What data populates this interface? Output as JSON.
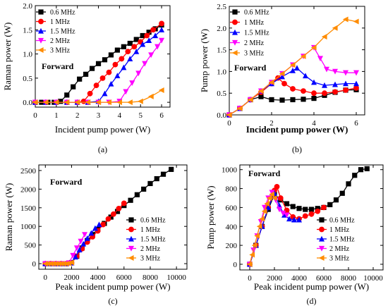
{
  "chart_data": [
    {
      "panel": "a",
      "caption": "(a)",
      "type": "line",
      "xlabel": "Incident pump power (W)",
      "ylabel": "Raman power (W)",
      "xlim": [
        0,
        6.4
      ],
      "ylim": [
        -0.1,
        2.0
      ],
      "xticks": [
        "0",
        "1",
        "2",
        "3",
        "4",
        "5",
        "6"
      ],
      "yticks": [
        "0.0",
        "0.5",
        "1.0",
        "1.5",
        "2.0"
      ],
      "xtick_values": [
        0,
        1,
        2,
        3,
        4,
        5,
        6
      ],
      "ytick_values": [
        0,
        0.5,
        1.0,
        1.5,
        2.0
      ],
      "annotation": "Forward",
      "legend": "top-left",
      "series": [
        {
          "name": "0.6 MHz",
          "marker": "square",
          "color": "#000000",
          "x": [
            0,
            0.3,
            0.6,
            0.9,
            1.2,
            1.5,
            1.8,
            2.1,
            2.4,
            2.7,
            3.0,
            3.3,
            3.6,
            3.9,
            4.2,
            4.5,
            4.8,
            5.1,
            5.4,
            5.7,
            6.0
          ],
          "y": [
            0,
            0,
            0,
            0,
            0.02,
            0.15,
            0.32,
            0.48,
            0.58,
            0.7,
            0.8,
            0.88,
            0.98,
            1.08,
            1.15,
            1.22,
            1.3,
            1.38,
            1.45,
            1.52,
            1.6
          ]
        },
        {
          "name": "1 MHz",
          "marker": "circle",
          "color": "#ff0000",
          "x": [
            0,
            0.5,
            1.0,
            1.5,
            2.0,
            2.3,
            2.6,
            2.9,
            3.2,
            3.5,
            3.8,
            4.1,
            4.4,
            4.7,
            5.0,
            5.3,
            5.6,
            6.0
          ],
          "y": [
            0,
            0,
            0,
            0,
            0,
            0.02,
            0.18,
            0.35,
            0.5,
            0.62,
            0.78,
            0.9,
            1.05,
            1.15,
            1.25,
            1.38,
            1.5,
            1.63
          ]
        },
        {
          "name": "1.5 MHz",
          "marker": "triangle-up",
          "color": "#0000ff",
          "x": [
            0,
            0.5,
            1.0,
            1.5,
            2.0,
            2.5,
            3.0,
            3.3,
            3.6,
            3.9,
            4.2,
            4.5,
            4.8,
            5.1,
            5.4,
            5.7,
            6.0
          ],
          "y": [
            0,
            0,
            0,
            0,
            0,
            0,
            0.02,
            0.18,
            0.38,
            0.55,
            0.72,
            0.9,
            1.05,
            1.2,
            1.28,
            1.38,
            1.5
          ]
        },
        {
          "name": "2 MHz",
          "marker": "triangle-down",
          "color": "#ff00ff",
          "x": [
            0,
            0.5,
            1.0,
            1.5,
            2.0,
            2.5,
            3.0,
            3.5,
            4.0,
            4.3,
            4.6,
            4.9,
            5.2,
            5.5,
            5.8,
            6.0
          ],
          "y": [
            0,
            0,
            0,
            0,
            0,
            0,
            0,
            0,
            0.02,
            0.22,
            0.4,
            0.6,
            0.8,
            0.98,
            1.15,
            1.28
          ]
        },
        {
          "name": "3 MHz",
          "marker": "triangle-left",
          "color": "#ff8c00",
          "x": [
            0,
            0.5,
            1.0,
            1.5,
            2.0,
            2.5,
            3.0,
            3.5,
            4.0,
            4.5,
            5.0,
            5.5,
            6.0
          ],
          "y": [
            0,
            0,
            0,
            0,
            0,
            0,
            0,
            0,
            0,
            0,
            0.02,
            0.12,
            0.25
          ]
        }
      ]
    },
    {
      "panel": "b",
      "caption": "(b)",
      "type": "line",
      "xlabel": "Incident pump power (W)",
      "ylabel": "Pump power (W)",
      "xlim": [
        0,
        6.4
      ],
      "ylim": [
        0,
        2.5
      ],
      "xticks": [
        "0",
        "2",
        "4",
        "6"
      ],
      "yticks": [
        "0.0",
        "0.5",
        "1.0",
        "1.5",
        "2.0",
        "2.5"
      ],
      "xtick_values": [
        0,
        2,
        4,
        6
      ],
      "ytick_values": [
        0,
        0.5,
        1.0,
        1.5,
        2.0,
        2.5
      ],
      "annotation": "Forward",
      "legend": "top-left",
      "series": [
        {
          "name": "0.6 MHz",
          "marker": "square",
          "color": "#000000",
          "x": [
            0,
            0.5,
            1.0,
            1.5,
            2.0,
            2.5,
            3.0,
            3.5,
            4.0,
            4.5,
            5.0,
            5.5,
            6.0
          ],
          "y": [
            0,
            0.15,
            0.35,
            0.42,
            0.35,
            0.34,
            0.35,
            0.36,
            0.38,
            0.45,
            0.52,
            0.57,
            0.58
          ]
        },
        {
          "name": "1 MHz",
          "marker": "circle",
          "color": "#ff0000",
          "x": [
            0,
            0.5,
            1.0,
            1.5,
            2.0,
            2.3,
            2.6,
            3.0,
            3.5,
            4.0,
            4.5,
            5.0,
            5.5,
            6.0
          ],
          "y": [
            0,
            0.15,
            0.35,
            0.52,
            0.72,
            0.85,
            0.72,
            0.6,
            0.55,
            0.5,
            0.5,
            0.53,
            0.57,
            0.62
          ]
        },
        {
          "name": "1.5 MHz",
          "marker": "triangle-up",
          "color": "#0000ff",
          "x": [
            0,
            0.5,
            1.0,
            1.5,
            2.0,
            2.5,
            3.0,
            3.2,
            3.6,
            4.0,
            4.5,
            5.0,
            5.5,
            6.0
          ],
          "y": [
            0,
            0.15,
            0.35,
            0.55,
            0.72,
            0.88,
            1.02,
            1.08,
            0.9,
            0.75,
            0.68,
            0.7,
            0.72,
            0.72
          ]
        },
        {
          "name": "2 MHz",
          "marker": "triangle-down",
          "color": "#ff00ff",
          "x": [
            0,
            0.5,
            1.0,
            1.5,
            2.0,
            2.5,
            3.0,
            3.5,
            4.0,
            4.3,
            4.6,
            5.0,
            5.5,
            6.0
          ],
          "y": [
            0,
            0.15,
            0.35,
            0.55,
            0.75,
            0.95,
            1.15,
            1.35,
            1.55,
            1.3,
            1.05,
            1.0,
            0.97,
            0.97
          ]
        },
        {
          "name": "3 MHz",
          "marker": "triangle-left",
          "color": "#ff8c00",
          "x": [
            0,
            0.5,
            1.0,
            1.5,
            2.0,
            2.5,
            3.0,
            3.5,
            4.0,
            4.5,
            5.0,
            5.5,
            6.0
          ],
          "y": [
            0,
            0.15,
            0.35,
            0.55,
            0.75,
            0.95,
            1.15,
            1.35,
            1.55,
            1.8,
            2.0,
            2.2,
            2.15
          ]
        }
      ]
    },
    {
      "panel": "c",
      "caption": "(c)",
      "type": "line",
      "xlabel": "Peak incident pump power (W)",
      "ylabel": "Raman power (W)",
      "xlim": [
        -500,
        10800
      ],
      "ylim": [
        -150,
        2650
      ],
      "xticks": [
        "0",
        "2000",
        "4000",
        "6000",
        "8000",
        "10000"
      ],
      "yticks": [
        "0",
        "500",
        "1000",
        "1500",
        "2000",
        "2500"
      ],
      "xtick_values": [
        0,
        2000,
        4000,
        6000,
        8000,
        10000
      ],
      "ytick_values": [
        0,
        500,
        1000,
        1500,
        2000,
        2500
      ],
      "annotation": "Forward",
      "legend": "bottom-right",
      "series": [
        {
          "name": "0.6 MHz",
          "marker": "square",
          "color": "#000000",
          "x": [
            0,
            400,
            800,
            1200,
            1600,
            2000,
            2400,
            2800,
            3200,
            3600,
            4000,
            4500,
            5000,
            5500,
            6000,
            6500,
            7000,
            7500,
            8000,
            8500,
            9000,
            9600
          ],
          "y": [
            0,
            0,
            0,
            0,
            0,
            30,
            200,
            420,
            620,
            780,
            920,
            1080,
            1250,
            1400,
            1560,
            1700,
            1850,
            2000,
            2150,
            2280,
            2400,
            2530
          ]
        },
        {
          "name": "1 MHz",
          "marker": "circle",
          "color": "#ff0000",
          "x": [
            0,
            400,
            800,
            1200,
            1600,
            2000,
            2400,
            2800,
            3200,
            3600,
            4000,
            4400,
            4800,
            5200,
            5600,
            6000
          ],
          "y": [
            0,
            0,
            0,
            0,
            0,
            20,
            200,
            400,
            580,
            720,
            880,
            1050,
            1200,
            1330,
            1480,
            1620
          ]
        },
        {
          "name": "1.5 MHz",
          "marker": "triangle-up",
          "color": "#0000ff",
          "x": [
            0,
            400,
            800,
            1200,
            1600,
            2000,
            2300,
            2600,
            2900,
            3200,
            3500,
            3800,
            4100
          ],
          "y": [
            0,
            0,
            0,
            0,
            0,
            20,
            180,
            370,
            530,
            680,
            820,
            950,
            1050
          ]
        },
        {
          "name": "2 MHz",
          "marker": "triangle-down",
          "color": "#ff00ff",
          "x": [
            0,
            300,
            600,
            900,
            1200,
            1500,
            1800,
            2100,
            2400,
            2700,
            3000
          ],
          "y": [
            0,
            0,
            0,
            0,
            0,
            0,
            20,
            220,
            420,
            600,
            780
          ]
        },
        {
          "name": "3 MHz",
          "marker": "triangle-left",
          "color": "#ff8c00",
          "x": [
            0,
            200,
            400,
            600,
            800,
            1000,
            1200,
            1400,
            1600,
            1800,
            2000
          ],
          "y": [
            0,
            0,
            0,
            0,
            0,
            0,
            0,
            0,
            0,
            10,
            30
          ]
        }
      ]
    },
    {
      "panel": "d",
      "caption": "(d)",
      "type": "line",
      "xlabel": "Peak incident pump power (W)",
      "ylabel": "Pump power (W)",
      "xlim": [
        -800,
        10800
      ],
      "ylim": [
        -60,
        1050
      ],
      "xticks": [
        "0",
        "2000",
        "4000",
        "6000",
        "8000",
        "10000"
      ],
      "yticks": [
        "0",
        "200",
        "400",
        "600",
        "800",
        "1000"
      ],
      "xtick_values": [
        0,
        2000,
        4000,
        6000,
        8000,
        10000
      ],
      "ytick_values": [
        0,
        200,
        400,
        600,
        800,
        1000
      ],
      "annotation": "Forward",
      "legend": "bottom-right",
      "series": [
        {
          "name": "0.6 MHz",
          "marker": "square",
          "color": "#000000",
          "x": [
            0,
            500,
            1000,
            1500,
            2000,
            2500,
            3000,
            3500,
            4000,
            4500,
            5000,
            5500,
            6000,
            6500,
            7000,
            7500,
            8000,
            8500,
            9000,
            9500
          ],
          "y": [
            0,
            200,
            400,
            580,
            740,
            680,
            640,
            610,
            590,
            580,
            580,
            590,
            600,
            630,
            680,
            750,
            850,
            940,
            1000,
            1010
          ]
        },
        {
          "name": "1 MHz",
          "marker": "circle",
          "color": "#ff0000",
          "x": [
            0,
            500,
            1000,
            1500,
            2000,
            2200,
            2500,
            3000,
            3500,
            4000,
            4500,
            5000,
            5500,
            6000
          ],
          "y": [
            0,
            200,
            400,
            600,
            780,
            820,
            700,
            570,
            500,
            480,
            510,
            530,
            560,
            600
          ]
        },
        {
          "name": "1.5 MHz",
          "marker": "triangle-up",
          "color": "#0000ff",
          "x": [
            0,
            500,
            1000,
            1500,
            2000,
            2400,
            2800,
            3200,
            3600,
            4000
          ],
          "y": [
            0,
            200,
            400,
            600,
            750,
            620,
            520,
            480,
            470,
            470
          ]
        },
        {
          "name": "2 MHz",
          "marker": "triangle-down",
          "color": "#ff00ff",
          "x": [
            0,
            300,
            600,
            900,
            1200,
            1500,
            1800,
            2100,
            2400,
            2700,
            3000
          ],
          "y": [
            0,
            150,
            300,
            450,
            600,
            700,
            760,
            680,
            580,
            540,
            520
          ]
        },
        {
          "name": "3 MHz",
          "marker": "triangle-left",
          "color": "#ff8c00",
          "x": [
            0,
            200,
            400,
            600,
            800,
            1000,
            1200,
            1400,
            1600,
            1800,
            2000
          ],
          "y": [
            0,
            100,
            200,
            300,
            400,
            480,
            560,
            640,
            700,
            740,
            700
          ]
        }
      ]
    }
  ]
}
